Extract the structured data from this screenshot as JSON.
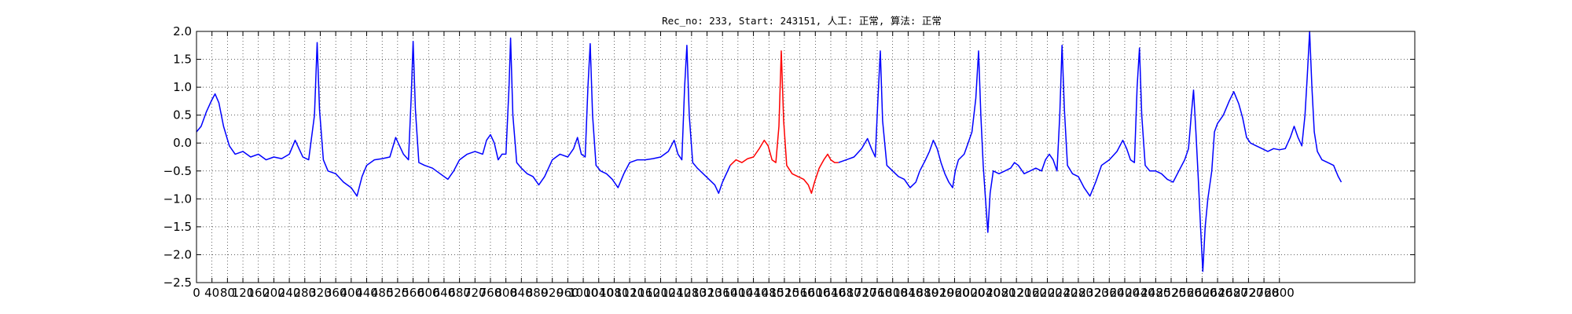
{
  "chart_data": {
    "type": "line",
    "title": "Rec_no: 233, Start: 243151, 人工: 正常, 算法: 正常",
    "xlabel": "",
    "ylabel": "",
    "xlim": [
      0,
      3150
    ],
    "ylim": [
      -2.5,
      2.0
    ],
    "grid": true,
    "grid_style": "dotted",
    "x_ticks": [
      0,
      40,
      80,
      120,
      160,
      200,
      240,
      280,
      320,
      360,
      400,
      440,
      480,
      520,
      560,
      600,
      640,
      680,
      720,
      760,
      800,
      840,
      880,
      920,
      960,
      1000,
      1040,
      1080,
      1120,
      1160,
      1200,
      1240,
      1280,
      1320,
      1360,
      1400,
      1440,
      1480,
      1520,
      1560,
      1600,
      1640,
      1680,
      1720,
      1760,
      1800,
      1840,
      1880,
      1920,
      1960,
      2000,
      2040,
      2080,
      2120,
      2160,
      2200,
      2240,
      2280,
      2320,
      2360,
      2400,
      2440,
      2480,
      2520,
      2560,
      2600,
      2640,
      2680,
      2720,
      2760,
      2800
    ],
    "x_tick_labels": [
      "0",
      "40",
      "80",
      "120",
      "160",
      "200",
      "240",
      "280",
      "320",
      "360",
      "400",
      "440",
      "480",
      "520",
      "560",
      "600",
      "640",
      "680",
      "720",
      "760",
      "800",
      "840",
      "880",
      "920",
      "960",
      "1000",
      "1040",
      "1080",
      "1120",
      "1160",
      "1200",
      "1240",
      "1280",
      "1320",
      "1360",
      "1400",
      "1440",
      "1480",
      "1520",
      "1560",
      "1600",
      "1640",
      "1680",
      "1720",
      "1760",
      "1800",
      "1840",
      "1880",
      "1920",
      "1960",
      "2000",
      "2040",
      "2080",
      "2120",
      "2160",
      "2200",
      "2240",
      "2280",
      "2320",
      "2360",
      "2400",
      "2440",
      "2480",
      "2520",
      "2560",
      "2600",
      "2640",
      "2680",
      "2720",
      "2760",
      "2800"
    ],
    "y_ticks": [
      2.0,
      1.5,
      1.0,
      0.5,
      0.0,
      -0.5,
      -1.0,
      -1.5,
      -2.0,
      -2.5
    ],
    "y_tick_labels": [
      "2.0",
      "1.5",
      "1.0",
      "0.5",
      "0.0",
      "−0.5",
      "−1.0",
      "−1.5",
      "−2.0",
      "−2.5"
    ],
    "series": [
      {
        "color": "#0000ff",
        "segments": [
          [
            [
              0,
              0.2
            ],
            [
              12,
              0.3
            ],
            [
              25,
              0.55
            ],
            [
              38,
              0.75
            ],
            [
              48,
              0.88
            ],
            [
              58,
              0.72
            ],
            [
              70,
              0.3
            ],
            [
              85,
              -0.05
            ],
            [
              100,
              -0.2
            ],
            [
              120,
              -0.15
            ],
            [
              140,
              -0.25
            ],
            [
              160,
              -0.2
            ],
            [
              180,
              -0.3
            ],
            [
              200,
              -0.25
            ],
            [
              220,
              -0.28
            ],
            [
              240,
              -0.2
            ],
            [
              255,
              0.05
            ],
            [
              265,
              -0.1
            ],
            [
              275,
              -0.25
            ],
            [
              290,
              -0.3
            ],
            [
              305,
              0.5
            ],
            [
              312,
              1.8
            ],
            [
              318,
              0.6
            ],
            [
              328,
              -0.3
            ],
            [
              340,
              -0.5
            ],
            [
              360,
              -0.55
            ],
            [
              380,
              -0.7
            ],
            [
              400,
              -0.8
            ],
            [
              415,
              -0.95
            ],
            [
              428,
              -0.6
            ],
            [
              440,
              -0.4
            ],
            [
              460,
              -0.3
            ],
            [
              480,
              -0.28
            ],
            [
              500,
              -0.25
            ],
            [
              515,
              0.1
            ],
            [
              525,
              -0.05
            ],
            [
              535,
              -0.2
            ],
            [
              548,
              -0.3
            ],
            [
              555,
              0.8
            ],
            [
              560,
              1.82
            ],
            [
              566,
              0.6
            ],
            [
              575,
              -0.35
            ],
            [
              590,
              -0.4
            ],
            [
              610,
              -0.45
            ],
            [
              630,
              -0.55
            ],
            [
              650,
              -0.65
            ],
            [
              665,
              -0.5
            ],
            [
              680,
              -0.3
            ],
            [
              700,
              -0.2
            ],
            [
              720,
              -0.15
            ],
            [
              740,
              -0.2
            ],
            [
              750,
              0.05
            ],
            [
              760,
              0.15
            ],
            [
              770,
              0.0
            ],
            [
              780,
              -0.3
            ],
            [
              790,
              -0.2
            ],
            [
              800,
              -0.2
            ],
            [
              808,
              1.0
            ],
            [
              812,
              1.88
            ],
            [
              818,
              0.5
            ],
            [
              828,
              -0.35
            ],
            [
              840,
              -0.45
            ],
            [
              855,
              -0.55
            ],
            [
              870,
              -0.6
            ],
            [
              885,
              -0.75
            ],
            [
              900,
              -0.6
            ],
            [
              920,
              -0.3
            ],
            [
              940,
              -0.2
            ],
            [
              960,
              -0.25
            ],
            [
              975,
              -0.1
            ],
            [
              985,
              0.1
            ],
            [
              995,
              -0.2
            ],
            [
              1005,
              -0.25
            ],
            [
              1012,
              1.0
            ],
            [
              1018,
              1.78
            ],
            [
              1024,
              0.5
            ],
            [
              1033,
              -0.4
            ],
            [
              1045,
              -0.5
            ],
            [
              1060,
              -0.55
            ],
            [
              1075,
              -0.65
            ],
            [
              1090,
              -0.8
            ],
            [
              1105,
              -0.55
            ],
            [
              1120,
              -0.35
            ],
            [
              1140,
              -0.3
            ],
            [
              1160,
              -0.3
            ],
            [
              1180,
              -0.28
            ],
            [
              1200,
              -0.25
            ],
            [
              1220,
              -0.15
            ],
            [
              1235,
              0.05
            ],
            [
              1245,
              -0.2
            ],
            [
              1255,
              -0.3
            ],
            [
              1262,
              1.0
            ],
            [
              1268,
              1.75
            ],
            [
              1274,
              0.5
            ],
            [
              1283,
              -0.35
            ],
            [
              1295,
              -0.45
            ],
            [
              1310,
              -0.55
            ],
            [
              1325,
              -0.65
            ],
            [
              1340,
              -0.75
            ],
            [
              1350,
              -0.9
            ],
            [
              1360,
              -0.7
            ],
            [
              1380,
              -0.4
            ]
          ],
          [
            [
              1660,
              -0.35
            ],
            [
              1680,
              -0.3
            ],
            [
              1700,
              -0.25
            ],
            [
              1720,
              -0.1
            ],
            [
              1735,
              0.08
            ],
            [
              1745,
              -0.1
            ],
            [
              1755,
              -0.25
            ],
            [
              1762,
              0.8
            ],
            [
              1768,
              1.65
            ],
            [
              1774,
              0.4
            ],
            [
              1785,
              -0.4
            ],
            [
              1800,
              -0.5
            ],
            [
              1815,
              -0.6
            ],
            [
              1830,
              -0.65
            ],
            [
              1845,
              -0.8
            ],
            [
              1860,
              -0.7
            ],
            [
              1870,
              -0.5
            ],
            [
              1885,
              -0.3
            ],
            [
              1895,
              -0.15
            ],
            [
              1905,
              0.05
            ],
            [
              1915,
              -0.1
            ],
            [
              1925,
              -0.35
            ],
            [
              1935,
              -0.55
            ],
            [
              1945,
              -0.7
            ],
            [
              1955,
              -0.8
            ],
            [
              1962,
              -0.5
            ],
            [
              1970,
              -0.3
            ],
            [
              1985,
              -0.2
            ],
            [
              1995,
              0.0
            ],
            [
              2005,
              0.2
            ],
            [
              2015,
              0.8
            ],
            [
              2022,
              1.65
            ],
            [
              2028,
              0.5
            ],
            [
              2034,
              -0.4
            ],
            [
              2040,
              -1.0
            ],
            [
              2046,
              -1.6
            ],
            [
              2052,
              -0.9
            ],
            [
              2060,
              -0.5
            ],
            [
              2075,
              -0.55
            ],
            [
              2090,
              -0.5
            ],
            [
              2105,
              -0.45
            ],
            [
              2115,
              -0.35
            ],
            [
              2125,
              -0.4
            ],
            [
              2140,
              -0.55
            ],
            [
              2155,
              -0.5
            ],
            [
              2170,
              -0.45
            ],
            [
              2185,
              -0.5
            ],
            [
              2195,
              -0.3
            ],
            [
              2205,
              -0.2
            ],
            [
              2215,
              -0.3
            ],
            [
              2225,
              -0.5
            ],
            [
              2232,
              0.5
            ],
            [
              2238,
              1.75
            ],
            [
              2244,
              0.6
            ],
            [
              2252,
              -0.4
            ],
            [
              2265,
              -0.55
            ],
            [
              2280,
              -0.6
            ],
            [
              2295,
              -0.8
            ],
            [
              2310,
              -0.95
            ],
            [
              2325,
              -0.7
            ],
            [
              2340,
              -0.4
            ],
            [
              2360,
              -0.3
            ],
            [
              2380,
              -0.15
            ],
            [
              2395,
              0.05
            ],
            [
              2405,
              -0.1
            ],
            [
              2415,
              -0.3
            ],
            [
              2425,
              -0.35
            ],
            [
              2432,
              1.0
            ],
            [
              2438,
              1.7
            ],
            [
              2444,
              0.5
            ],
            [
              2453,
              -0.4
            ],
            [
              2465,
              -0.5
            ],
            [
              2480,
              -0.5
            ],
            [
              2495,
              -0.55
            ],
            [
              2510,
              -0.65
            ],
            [
              2525,
              -0.7
            ],
            [
              2540,
              -0.5
            ],
            [
              2555,
              -0.3
            ],
            [
              2565,
              -0.1
            ],
            [
              2572,
              0.5
            ],
            [
              2578,
              0.95
            ],
            [
              2584,
              0.2
            ],
            [
              2590,
              -0.6
            ],
            [
              2596,
              -1.5
            ],
            [
              2602,
              -2.3
            ],
            [
              2608,
              -1.5
            ],
            [
              2615,
              -1.0
            ],
            [
              2625,
              -0.5
            ],
            [
              2632,
              0.2
            ],
            [
              2640,
              0.35
            ],
            [
              2655,
              0.5
            ],
            [
              2670,
              0.75
            ],
            [
              2682,
              0.92
            ],
            [
              2695,
              0.7
            ],
            [
              2705,
              0.45
            ],
            [
              2715,
              0.1
            ],
            [
              2725,
              0.0
            ],
            [
              2740,
              -0.05
            ],
            [
              2755,
              -0.1
            ],
            [
              2770,
              -0.15
            ],
            [
              2785,
              -0.1
            ],
            [
              2800,
              -0.12
            ],
            [
              2815,
              -0.1
            ],
            [
              2828,
              0.1
            ],
            [
              2838,
              0.3
            ],
            [
              2848,
              0.1
            ],
            [
              2858,
              -0.05
            ],
            [
              2866,
              0.5
            ],
            [
              2872,
              1.2
            ],
            [
              2878,
              2.0
            ],
            [
              2884,
              1.0
            ],
            [
              2890,
              0.2
            ],
            [
              2898,
              -0.15
            ],
            [
              2910,
              -0.3
            ],
            [
              2925,
              -0.35
            ],
            [
              2940,
              -0.4
            ],
            [
              2952,
              -0.6
            ],
            [
              2960,
              -0.7
            ]
          ]
        ]
      },
      {
        "color": "#ff0000",
        "segments": [
          [
            [
              1380,
              -0.4
            ],
            [
              1395,
              -0.3
            ],
            [
              1410,
              -0.35
            ],
            [
              1425,
              -0.28
            ],
            [
              1440,
              -0.25
            ],
            [
              1455,
              -0.1
            ],
            [
              1468,
              0.05
            ],
            [
              1478,
              -0.05
            ],
            [
              1488,
              -0.3
            ],
            [
              1498,
              -0.35
            ],
            [
              1506,
              0.3
            ],
            [
              1512,
              1.65
            ],
            [
              1518,
              0.4
            ],
            [
              1526,
              -0.4
            ],
            [
              1540,
              -0.55
            ],
            [
              1555,
              -0.6
            ],
            [
              1570,
              -0.65
            ],
            [
              1582,
              -0.75
            ],
            [
              1590,
              -0.9
            ],
            [
              1598,
              -0.7
            ],
            [
              1610,
              -0.45
            ],
            [
              1622,
              -0.3
            ],
            [
              1632,
              -0.2
            ],
            [
              1640,
              -0.3
            ],
            [
              1650,
              -0.35
            ],
            [
              1660,
              -0.35
            ]
          ]
        ]
      }
    ]
  }
}
